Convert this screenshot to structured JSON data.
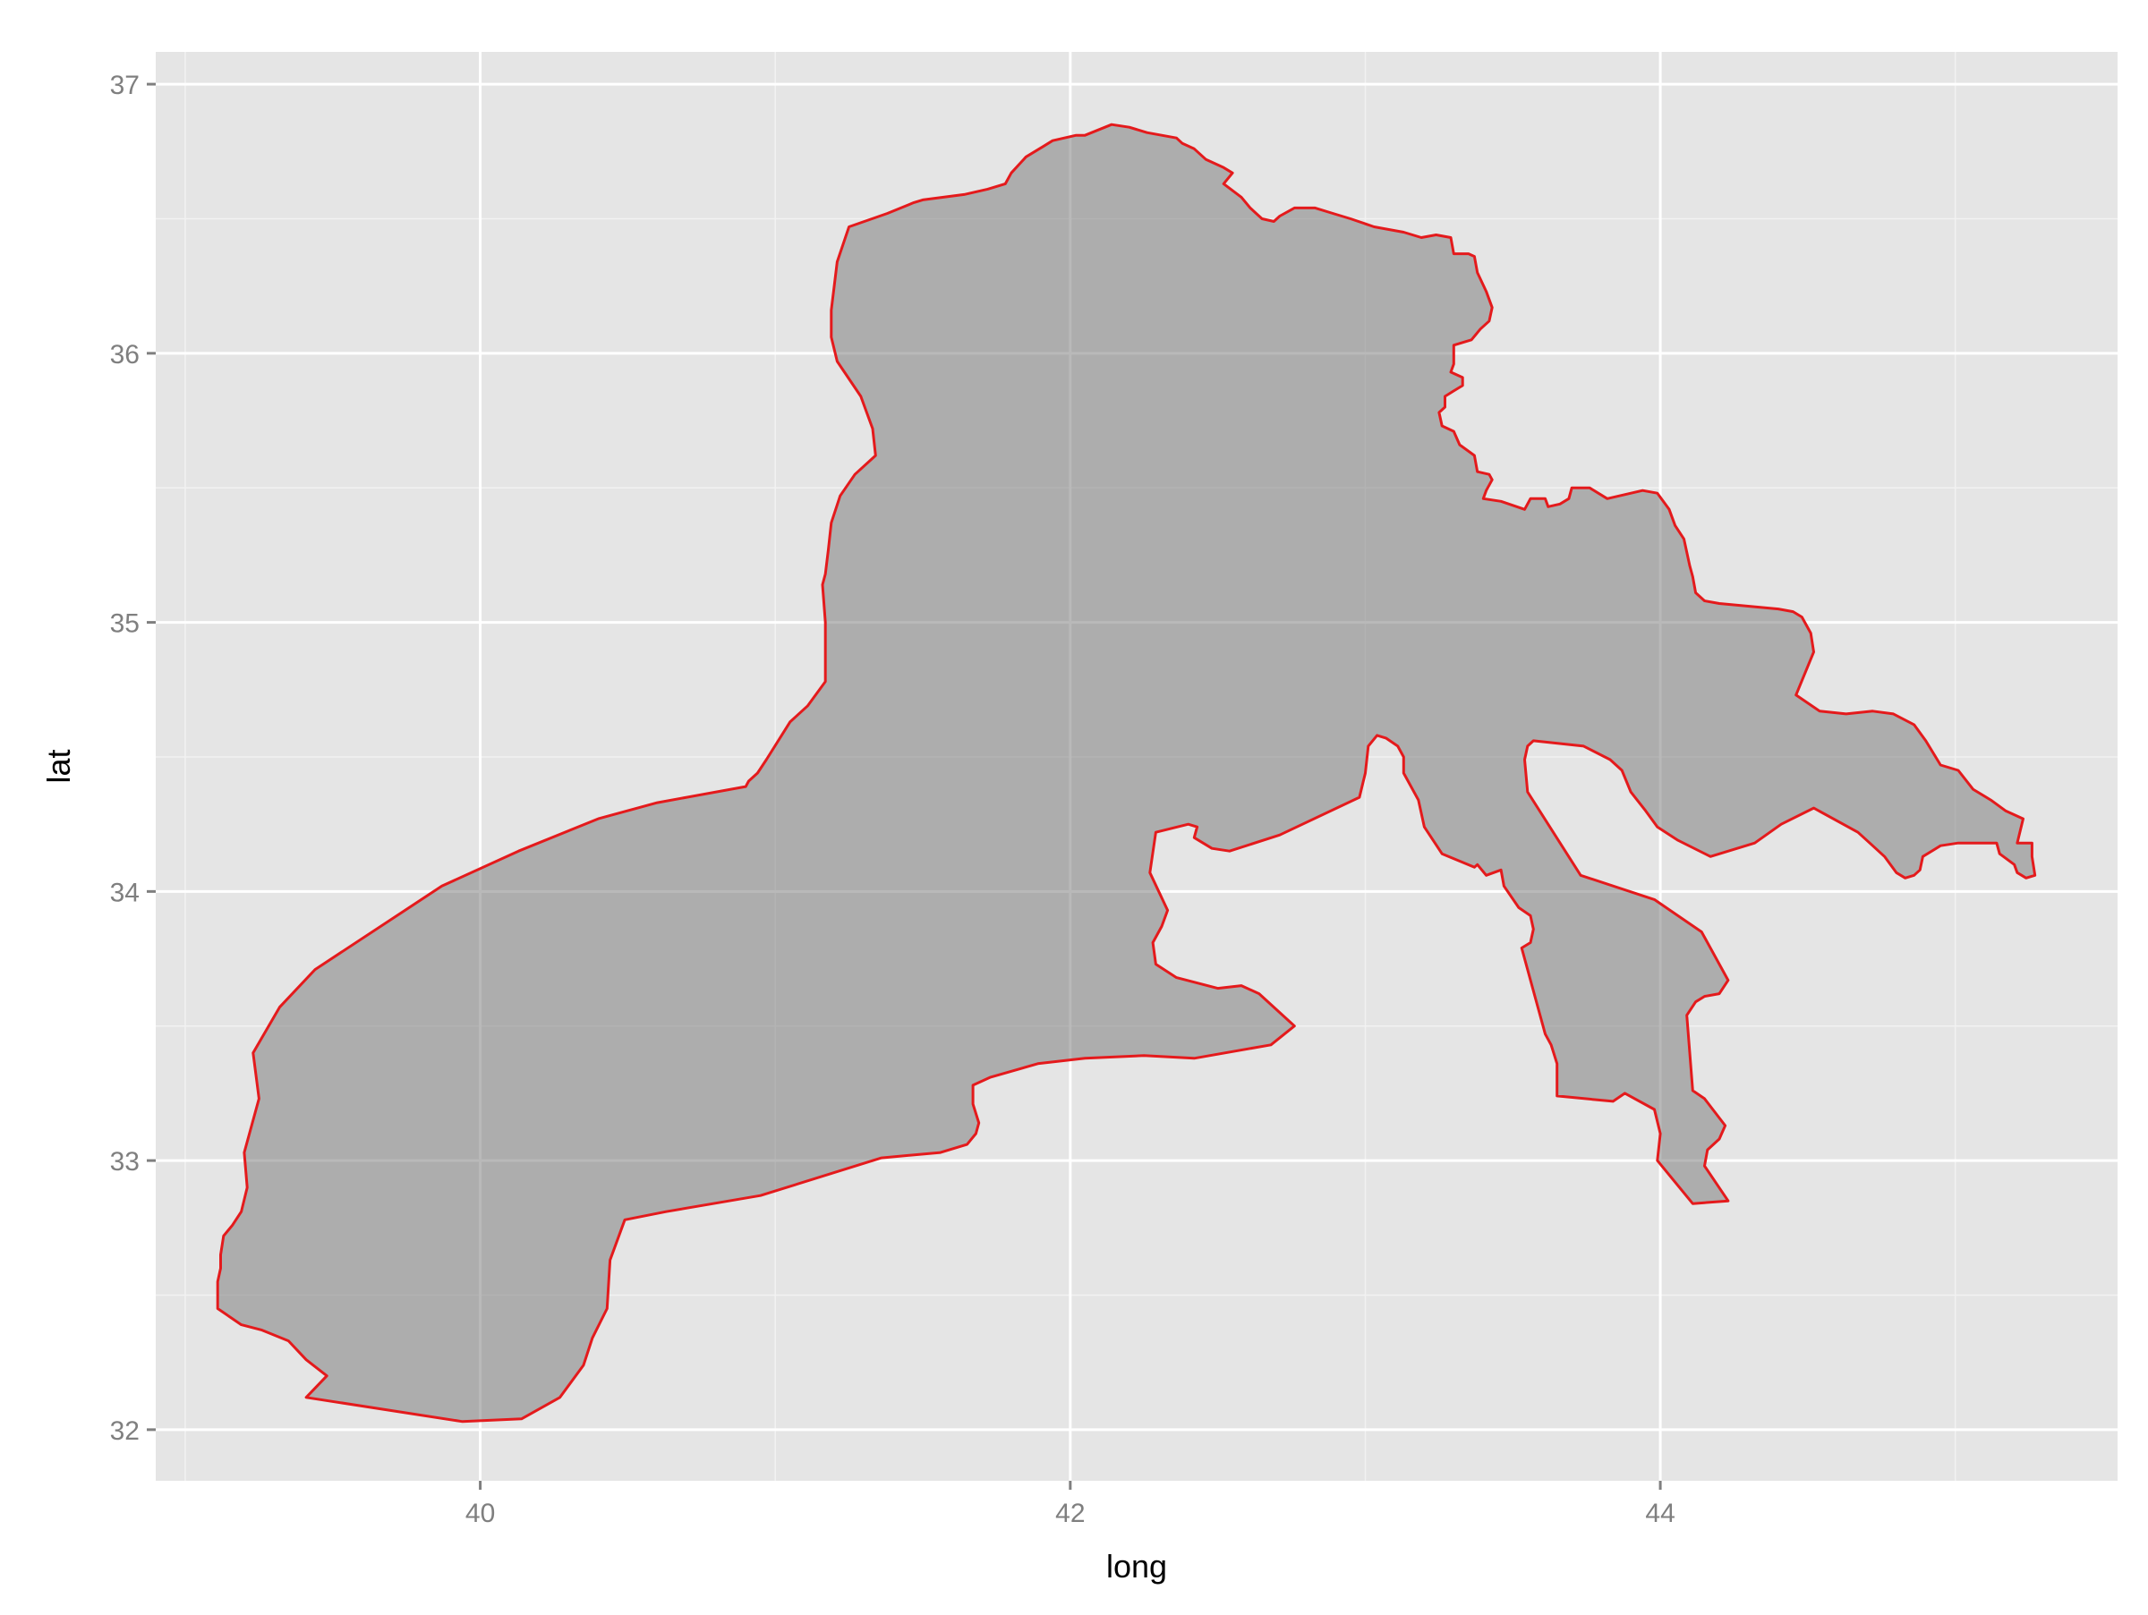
{
  "chart_data": {
    "type": "area",
    "xlabel": "long",
    "ylabel": "lat",
    "xlim": [
      38.9,
      45.55
    ],
    "ylim": [
      31.81,
      37.12
    ],
    "x_ticks": [
      40,
      42,
      44
    ],
    "x_tick_labels": [
      "40",
      "42",
      "44"
    ],
    "y_ticks": [
      32,
      33,
      34,
      35,
      36,
      37
    ],
    "y_tick_labels": [
      "32",
      "33",
      "34",
      "35",
      "36",
      "37"
    ],
    "x_minor_ticks": [
      39,
      41,
      43,
      45
    ],
    "y_minor_ticks": [
      32.5,
      33.5,
      34.5,
      35.5,
      36.5
    ],
    "grid": true,
    "legend": "none",
    "colors": {
      "panel_background": "#e5e5e5",
      "grid_major": "#ffffff",
      "grid_minor": "#f2f2f2",
      "fill": "#7f7f7f",
      "fill_opacity": 0.55,
      "outline": "#e41a1c"
    },
    "series": [
      {
        "polygon": [
          [
            39.41,
            32.12
          ],
          [
            39.94,
            32.03
          ],
          [
            40.14,
            32.04
          ],
          [
            40.27,
            32.12
          ],
          [
            40.35,
            32.24
          ],
          [
            40.38,
            32.34
          ],
          [
            40.43,
            32.45
          ],
          [
            40.44,
            32.63
          ],
          [
            40.49,
            32.78
          ],
          [
            40.63,
            32.81
          ],
          [
            40.95,
            32.87
          ],
          [
            41.36,
            33.01
          ],
          [
            41.56,
            33.03
          ],
          [
            41.65,
            33.06
          ],
          [
            41.68,
            33.1
          ],
          [
            41.69,
            33.14
          ],
          [
            41.67,
            33.21
          ],
          [
            41.67,
            33.28
          ],
          [
            41.73,
            33.31
          ],
          [
            41.89,
            33.36
          ],
          [
            42.05,
            33.38
          ],
          [
            42.25,
            33.39
          ],
          [
            42.42,
            33.38
          ],
          [
            42.68,
            33.43
          ],
          [
            42.76,
            33.5
          ],
          [
            42.64,
            33.62
          ],
          [
            42.58,
            33.65
          ],
          [
            42.5,
            33.64
          ],
          [
            42.36,
            33.68
          ],
          [
            42.29,
            33.73
          ],
          [
            42.28,
            33.81
          ],
          [
            42.31,
            33.87
          ],
          [
            42.33,
            33.93
          ],
          [
            42.27,
            34.07
          ],
          [
            42.29,
            34.22
          ],
          [
            42.4,
            34.25
          ],
          [
            42.43,
            34.24
          ],
          [
            42.42,
            34.2
          ],
          [
            42.48,
            34.16
          ],
          [
            42.54,
            34.15
          ],
          [
            42.71,
            34.21
          ],
          [
            42.98,
            34.35
          ],
          [
            43.0,
            34.44
          ],
          [
            43.01,
            34.54
          ],
          [
            43.04,
            34.58
          ],
          [
            43.07,
            34.57
          ],
          [
            43.11,
            34.54
          ],
          [
            43.13,
            34.5
          ],
          [
            43.13,
            34.44
          ],
          [
            43.18,
            34.34
          ],
          [
            43.2,
            34.24
          ],
          [
            43.26,
            34.14
          ],
          [
            43.37,
            34.09
          ],
          [
            43.38,
            34.1
          ],
          [
            43.41,
            34.06
          ],
          [
            43.46,
            34.08
          ],
          [
            43.47,
            34.02
          ],
          [
            43.52,
            33.94
          ],
          [
            43.56,
            33.91
          ],
          [
            43.57,
            33.86
          ],
          [
            43.56,
            33.81
          ],
          [
            43.53,
            33.79
          ],
          [
            43.61,
            33.47
          ],
          [
            43.63,
            33.43
          ],
          [
            43.65,
            33.36
          ],
          [
            43.65,
            33.24
          ],
          [
            43.84,
            33.22
          ],
          [
            43.88,
            33.25
          ],
          [
            43.98,
            33.19
          ],
          [
            44.0,
            33.1
          ],
          [
            43.99,
            33.0
          ],
          [
            44.11,
            32.84
          ],
          [
            44.23,
            32.85
          ],
          [
            44.15,
            32.98
          ],
          [
            44.16,
            33.04
          ],
          [
            44.2,
            33.08
          ],
          [
            44.22,
            33.13
          ],
          [
            44.15,
            33.23
          ],
          [
            44.11,
            33.26
          ],
          [
            44.09,
            33.54
          ],
          [
            44.12,
            33.59
          ],
          [
            44.15,
            33.61
          ],
          [
            44.2,
            33.62
          ],
          [
            44.23,
            33.67
          ],
          [
            44.14,
            33.85
          ],
          [
            43.98,
            33.97
          ],
          [
            43.73,
            34.06
          ],
          [
            43.55,
            34.37
          ],
          [
            43.54,
            34.49
          ],
          [
            43.55,
            34.54
          ],
          [
            43.57,
            34.56
          ],
          [
            43.74,
            34.54
          ],
          [
            43.83,
            34.49
          ],
          [
            43.87,
            34.45
          ],
          [
            43.9,
            34.37
          ],
          [
            43.95,
            34.3
          ],
          [
            43.99,
            34.24
          ],
          [
            44.06,
            34.19
          ],
          [
            44.17,
            34.13
          ],
          [
            44.32,
            34.18
          ],
          [
            44.41,
            34.25
          ],
          [
            44.52,
            34.31
          ],
          [
            44.67,
            34.22
          ],
          [
            44.71,
            34.18
          ],
          [
            44.76,
            34.13
          ],
          [
            44.8,
            34.07
          ],
          [
            44.83,
            34.05
          ],
          [
            44.86,
            34.06
          ],
          [
            44.88,
            34.08
          ],
          [
            44.89,
            34.13
          ],
          [
            44.95,
            34.17
          ],
          [
            45.01,
            34.18
          ],
          [
            45.14,
            34.18
          ],
          [
            45.15,
            34.14
          ],
          [
            45.2,
            34.1
          ],
          [
            45.21,
            34.07
          ],
          [
            45.24,
            34.05
          ],
          [
            45.27,
            34.06
          ],
          [
            45.26,
            34.13
          ],
          [
            45.26,
            34.18
          ],
          [
            45.21,
            34.18
          ],
          [
            45.23,
            34.27
          ],
          [
            45.17,
            34.3
          ],
          [
            45.12,
            34.34
          ],
          [
            45.06,
            34.38
          ],
          [
            45.01,
            34.45
          ],
          [
            44.95,
            34.47
          ],
          [
            44.9,
            34.56
          ],
          [
            44.86,
            34.62
          ],
          [
            44.79,
            34.66
          ],
          [
            44.72,
            34.67
          ],
          [
            44.63,
            34.66
          ],
          [
            44.54,
            34.67
          ],
          [
            44.46,
            34.73
          ],
          [
            44.52,
            34.89
          ],
          [
            44.51,
            34.96
          ],
          [
            44.48,
            35.02
          ],
          [
            44.45,
            35.04
          ],
          [
            44.4,
            35.05
          ],
          [
            44.2,
            35.07
          ],
          [
            44.15,
            35.08
          ],
          [
            44.12,
            35.11
          ],
          [
            44.11,
            35.17
          ],
          [
            44.1,
            35.21
          ],
          [
            44.08,
            35.31
          ],
          [
            44.05,
            35.36
          ],
          [
            44.03,
            35.42
          ],
          [
            43.99,
            35.48
          ],
          [
            43.94,
            35.49
          ],
          [
            43.82,
            35.46
          ],
          [
            43.76,
            35.5
          ],
          [
            43.7,
            35.5
          ],
          [
            43.69,
            35.46
          ],
          [
            43.66,
            35.44
          ],
          [
            43.62,
            35.43
          ],
          [
            43.61,
            35.46
          ],
          [
            43.56,
            35.46
          ],
          [
            43.54,
            35.42
          ],
          [
            43.46,
            35.45
          ],
          [
            43.4,
            35.46
          ],
          [
            43.41,
            35.49
          ],
          [
            43.43,
            35.53
          ],
          [
            43.42,
            35.55
          ],
          [
            43.38,
            35.56
          ],
          [
            43.37,
            35.62
          ],
          [
            43.32,
            35.66
          ],
          [
            43.3,
            35.71
          ],
          [
            43.26,
            35.73
          ],
          [
            43.25,
            35.78
          ],
          [
            43.27,
            35.8
          ],
          [
            43.27,
            35.84
          ],
          [
            43.3,
            35.86
          ],
          [
            43.33,
            35.88
          ],
          [
            43.33,
            35.91
          ],
          [
            43.29,
            35.93
          ],
          [
            43.3,
            35.96
          ],
          [
            43.3,
            36.03
          ],
          [
            43.36,
            36.05
          ],
          [
            43.39,
            36.09
          ],
          [
            43.42,
            36.12
          ],
          [
            43.43,
            36.17
          ],
          [
            43.41,
            36.23
          ],
          [
            43.38,
            36.3
          ],
          [
            43.37,
            36.36
          ],
          [
            43.35,
            36.37
          ],
          [
            43.3,
            36.37
          ],
          [
            43.29,
            36.43
          ],
          [
            43.24,
            36.44
          ],
          [
            43.19,
            36.43
          ],
          [
            43.13,
            36.45
          ],
          [
            43.03,
            36.47
          ],
          [
            42.95,
            36.5
          ],
          [
            42.89,
            36.52
          ],
          [
            42.83,
            36.54
          ],
          [
            42.76,
            36.54
          ],
          [
            42.71,
            36.51
          ],
          [
            42.69,
            36.49
          ],
          [
            42.65,
            36.5
          ],
          [
            42.63,
            36.52
          ],
          [
            42.61,
            36.54
          ],
          [
            42.58,
            36.58
          ],
          [
            42.52,
            36.63
          ],
          [
            42.55,
            36.67
          ],
          [
            42.52,
            36.69
          ],
          [
            42.46,
            36.72
          ],
          [
            42.42,
            36.76
          ],
          [
            42.38,
            36.78
          ],
          [
            42.36,
            36.8
          ],
          [
            42.31,
            36.81
          ],
          [
            42.26,
            36.82
          ],
          [
            42.2,
            36.84
          ],
          [
            42.14,
            36.85
          ],
          [
            42.05,
            36.81
          ],
          [
            42.02,
            36.81
          ],
          [
            41.98,
            36.8
          ],
          [
            41.94,
            36.79
          ],
          [
            41.91,
            36.77
          ],
          [
            41.85,
            36.73
          ],
          [
            41.8,
            36.67
          ],
          [
            41.78,
            36.63
          ],
          [
            41.72,
            36.61
          ],
          [
            41.64,
            36.59
          ],
          [
            41.57,
            36.58
          ],
          [
            41.5,
            36.57
          ],
          [
            41.47,
            36.56
          ],
          [
            41.38,
            36.52
          ],
          [
            41.25,
            36.47
          ],
          [
            41.21,
            36.34
          ],
          [
            41.19,
            36.16
          ],
          [
            41.19,
            36.06
          ],
          [
            41.21,
            35.97
          ],
          [
            41.29,
            35.84
          ],
          [
            41.33,
            35.72
          ],
          [
            41.34,
            35.62
          ],
          [
            41.27,
            35.55
          ],
          [
            41.22,
            35.47
          ],
          [
            41.19,
            35.37
          ],
          [
            41.18,
            35.27
          ],
          [
            41.17,
            35.18
          ],
          [
            41.16,
            35.14
          ],
          [
            41.17,
            35.0
          ],
          [
            41.17,
            34.78
          ],
          [
            41.11,
            34.69
          ],
          [
            41.05,
            34.63
          ],
          [
            40.97,
            34.49
          ],
          [
            40.94,
            34.44
          ],
          [
            40.92,
            34.42
          ],
          [
            40.91,
            34.41
          ],
          [
            40.9,
            34.39
          ],
          [
            40.6,
            34.33
          ],
          [
            40.4,
            34.27
          ],
          [
            40.13,
            34.15
          ],
          [
            39.87,
            34.02
          ],
          [
            39.44,
            33.71
          ],
          [
            39.32,
            33.57
          ],
          [
            39.23,
            33.4
          ],
          [
            39.25,
            33.23
          ],
          [
            39.2,
            33.03
          ],
          [
            39.21,
            32.9
          ],
          [
            39.19,
            32.81
          ],
          [
            39.16,
            32.76
          ],
          [
            39.13,
            32.72
          ],
          [
            39.12,
            32.65
          ],
          [
            39.12,
            32.6
          ],
          [
            39.11,
            32.55
          ],
          [
            39.11,
            32.45
          ],
          [
            39.19,
            32.39
          ],
          [
            39.26,
            32.37
          ],
          [
            39.35,
            32.33
          ],
          [
            39.41,
            32.26
          ],
          [
            39.48,
            32.2
          ],
          [
            39.41,
            32.12
          ]
        ]
      }
    ]
  }
}
